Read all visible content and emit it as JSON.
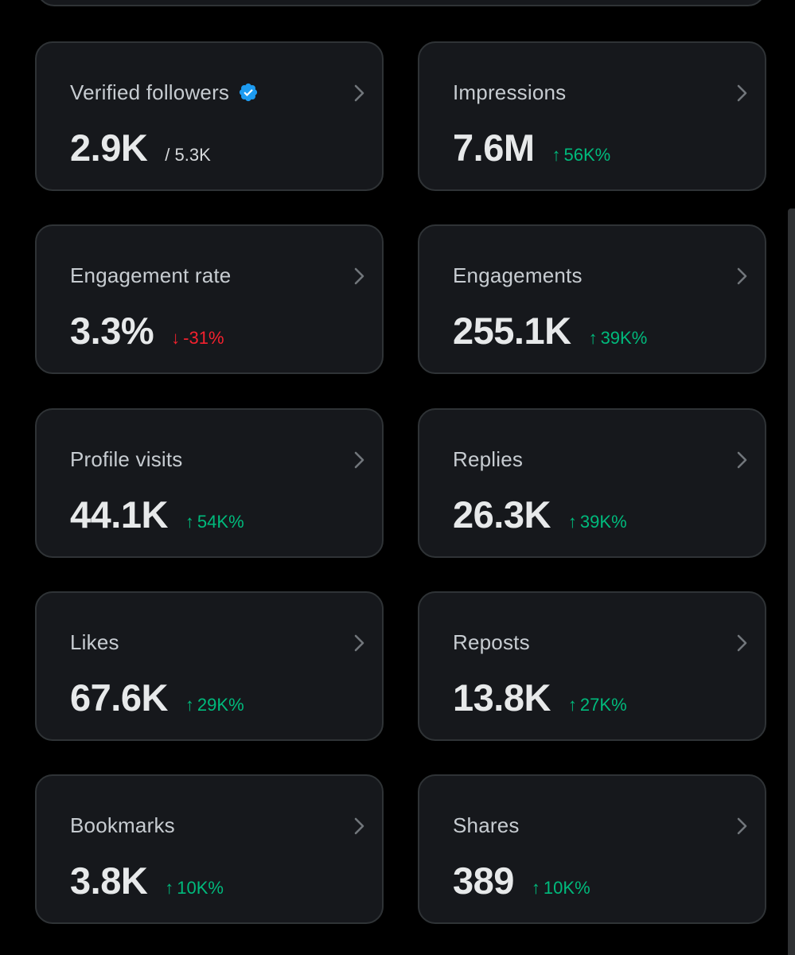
{
  "colors": {
    "background": "#000000",
    "card": "#16181c",
    "border": "#2f3336",
    "positive": "#00ba7c",
    "negative": "#f4212e",
    "verified_badge": "#1d9bf0"
  },
  "metrics": [
    {
      "label": "Verified followers",
      "value": "2.9K",
      "sub": "/ 5.3K",
      "icon": "verified-badge-icon"
    },
    {
      "label": "Impressions",
      "value": "7.6M",
      "delta": "56K%",
      "direction": "up"
    },
    {
      "label": "Engagement rate",
      "value": "3.3%",
      "delta": "-31%",
      "direction": "down"
    },
    {
      "label": "Engagements",
      "value": "255.1K",
      "delta": "39K%",
      "direction": "up"
    },
    {
      "label": "Profile visits",
      "value": "44.1K",
      "delta": "54K%",
      "direction": "up"
    },
    {
      "label": "Replies",
      "value": "26.3K",
      "delta": "39K%",
      "direction": "up"
    },
    {
      "label": "Likes",
      "value": "67.6K",
      "delta": "29K%",
      "direction": "up"
    },
    {
      "label": "Reposts",
      "value": "13.8K",
      "delta": "27K%",
      "direction": "up"
    },
    {
      "label": "Bookmarks",
      "value": "3.8K",
      "delta": "10K%",
      "direction": "up"
    },
    {
      "label": "Shares",
      "value": "389",
      "delta": "10K%",
      "direction": "up"
    }
  ]
}
